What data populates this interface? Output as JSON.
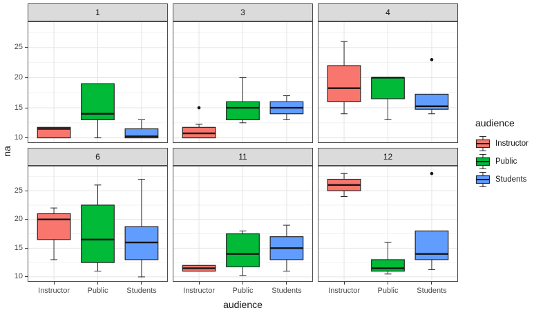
{
  "chart_data": {
    "type": "boxplot",
    "title": "",
    "xlabel": "audience",
    "ylabel": "na",
    "categories": [
      "Instructor",
      "Public",
      "Students"
    ],
    "y_ticks": [
      10,
      15,
      20,
      25
    ],
    "y_minor_ticks": [
      12.5,
      17.5,
      22.5,
      27.5
    ],
    "ylim": [
      9.15,
      29.35
    ],
    "grid": true,
    "legend": {
      "title": "audience",
      "position": "right",
      "entries": [
        {
          "label": "Instructor",
          "color": "#F8766D"
        },
        {
          "label": "Public",
          "color": "#00BA38"
        },
        {
          "label": "Students",
          "color": "#619CFF"
        }
      ]
    },
    "facets": [
      {
        "label": "1",
        "boxes": [
          {
            "group": "Instructor",
            "whisker_low": 10,
            "q1": 10,
            "median": 11.5,
            "q3": 11.75,
            "whisker_high": 11.75,
            "outliers": []
          },
          {
            "group": "Public",
            "whisker_low": 10,
            "q1": 13,
            "median": 14,
            "q3": 19,
            "whisker_high": 19,
            "outliers": []
          },
          {
            "group": "Students",
            "whisker_low": 10,
            "q1": 10,
            "median": 10.25,
            "q3": 11.5,
            "whisker_high": 13,
            "outliers": []
          }
        ]
      },
      {
        "label": "3",
        "boxes": [
          {
            "group": "Instructor",
            "whisker_low": 10,
            "q1": 10,
            "median": 10.75,
            "q3": 11.75,
            "whisker_high": 12.25,
            "outliers": [
              15
            ]
          },
          {
            "group": "Public",
            "whisker_low": 12.5,
            "q1": 13,
            "median": 15,
            "q3": 16,
            "whisker_high": 20,
            "outliers": []
          },
          {
            "group": "Students",
            "whisker_low": 13,
            "q1": 14,
            "median": 15,
            "q3": 16,
            "whisker_high": 17,
            "outliers": []
          }
        ]
      },
      {
        "label": "4",
        "boxes": [
          {
            "group": "Instructor",
            "whisker_low": 14,
            "q1": 16,
            "median": 18.25,
            "q3": 22,
            "whisker_high": 26,
            "outliers": []
          },
          {
            "group": "Public",
            "whisker_low": 13,
            "q1": 16.5,
            "median": 20,
            "q3": 20,
            "whisker_high": 20,
            "outliers": []
          },
          {
            "group": "Students",
            "whisker_low": 14,
            "q1": 14.75,
            "median": 15.25,
            "q3": 17.25,
            "whisker_high": 17.25,
            "outliers": [
              23
            ]
          }
        ]
      },
      {
        "label": "6",
        "boxes": [
          {
            "group": "Instructor",
            "whisker_low": 13,
            "q1": 16.5,
            "median": 20,
            "q3": 21,
            "whisker_high": 22,
            "outliers": []
          },
          {
            "group": "Public",
            "whisker_low": 11,
            "q1": 12.5,
            "median": 16.5,
            "q3": 22.5,
            "whisker_high": 26,
            "outliers": []
          },
          {
            "group": "Students",
            "whisker_low": 10,
            "q1": 13,
            "median": 16,
            "q3": 18.75,
            "whisker_high": 27,
            "outliers": []
          }
        ]
      },
      {
        "label": "11",
        "boxes": [
          {
            "group": "Instructor",
            "whisker_low": 11,
            "q1": 11,
            "median": 11.5,
            "q3": 12,
            "whisker_high": 12,
            "outliers": []
          },
          {
            "group": "Public",
            "whisker_low": 10.25,
            "q1": 11.75,
            "median": 14,
            "q3": 17.5,
            "whisker_high": 18,
            "outliers": []
          },
          {
            "group": "Students",
            "whisker_low": 11,
            "q1": 13,
            "median": 15,
            "q3": 17,
            "whisker_high": 19,
            "outliers": []
          }
        ]
      },
      {
        "label": "12",
        "boxes": [
          {
            "group": "Instructor",
            "whisker_low": 24,
            "q1": 25,
            "median": 26,
            "q3": 27,
            "whisker_high": 28,
            "outliers": []
          },
          {
            "group": "Public",
            "whisker_low": 10.5,
            "q1": 11,
            "median": 11.5,
            "q3": 13,
            "whisker_high": 16,
            "outliers": []
          },
          {
            "group": "Students",
            "whisker_low": 11.25,
            "q1": 13,
            "median": 14,
            "q3": 18,
            "whisker_high": 18,
            "outliers": [
              28
            ]
          }
        ]
      }
    ]
  },
  "colors": {
    "strip_bg": "#DBDBDB",
    "panel_border": "#4D4D4D",
    "grid_major": "#E4E4E4",
    "grid_minor": "#F2F2F2",
    "box_stroke": "#262626",
    "median_stroke": "#141414",
    "outlier_fill": "#141414",
    "tick_color": "#333333"
  }
}
